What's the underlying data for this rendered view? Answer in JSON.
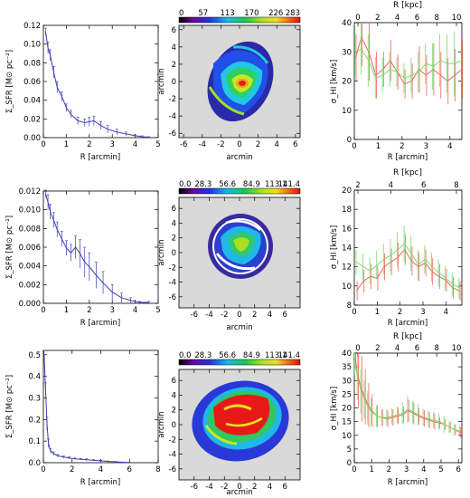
{
  "panels": {
    "left": [
      {
        "xlabel": "R  [arcmin]",
        "ylabel": "Σ_SFR [M⊙ pc⁻²]",
        "xlim": [
          0,
          5
        ],
        "ylim": [
          0,
          0.12
        ],
        "xticks": [
          0,
          1,
          2,
          3,
          4,
          5
        ],
        "yticks": [
          0,
          0.02,
          0.04,
          0.06,
          0.08,
          0.1,
          0.12
        ],
        "ytick_labels": [
          "0.00",
          "0.02",
          "0.04",
          "0.06",
          "0.08",
          "0.10",
          "0.12"
        ]
      },
      {
        "xlabel": "R  [arcmin]",
        "ylabel": "Σ_SFR [M⊙ pc⁻²]",
        "xlim": [
          0,
          5
        ],
        "ylim": [
          0,
          0.012
        ],
        "xticks": [
          0,
          1,
          2,
          3,
          4,
          5
        ],
        "yticks": [
          0,
          0.002,
          0.004,
          0.006,
          0.008,
          0.01,
          0.012
        ],
        "ytick_labels": [
          "0.000",
          "0.002",
          "0.004",
          "0.006",
          "0.008",
          "0.010",
          "0.012"
        ]
      },
      {
        "xlabel": "R  [arcmin]",
        "ylabel": "Σ_SFR [M⊙ pc⁻²]",
        "xlim": [
          0,
          8
        ],
        "ylim": [
          0,
          0.52
        ],
        "xticks": [
          0,
          2,
          4,
          6,
          8
        ],
        "yticks": [
          0,
          0.1,
          0.2,
          0.3,
          0.4,
          0.5
        ],
        "ytick_labels": [
          "0.0",
          "0.1",
          "0.2",
          "0.3",
          "0.4",
          "0.5"
        ]
      }
    ],
    "middle": [
      {
        "colorbar_ticks": [
          "0",
          "57",
          "113",
          "170",
          "226",
          "283"
        ],
        "xlabel": "arcmin",
        "ylabel": "arcmin",
        "xlim": [
          -6.5,
          6.5
        ],
        "ylim": [
          -6.5,
          6.5
        ],
        "xticks": [
          -6,
          -4,
          -2,
          0,
          2,
          4,
          6
        ],
        "yticks": [
          -6,
          -4,
          -2,
          0,
          2,
          4,
          6
        ]
      },
      {
        "colorbar_ticks": [
          "0.0",
          "28.3",
          "56.6",
          "84.9",
          "113.1",
          "141.4"
        ],
        "xlabel": "arcmin",
        "ylabel": "arcmin",
        "xlim": [
          -8,
          8
        ],
        "ylim": [
          -7.5,
          7.5
        ],
        "xticks": [
          -6,
          -4,
          -2,
          0,
          2,
          4,
          6
        ],
        "yticks": [
          -6,
          -4,
          -2,
          0,
          2,
          4,
          6
        ]
      },
      {
        "colorbar_ticks": [
          "0.0",
          "28.3",
          "56.6",
          "84.9",
          "113.1",
          "141.4"
        ],
        "xlabel": "arcmin",
        "ylabel": "arcmin",
        "xlim": [
          -8,
          8
        ],
        "ylim": [
          -7.5,
          7.5
        ],
        "xticks": [
          -6,
          -4,
          -2,
          0,
          2,
          4,
          6
        ],
        "yticks": [
          -6,
          -4,
          -2,
          0,
          2,
          4,
          6
        ]
      }
    ],
    "right": [
      {
        "top_label": "R  [kpc]",
        "xlabel": "R  [arcmin]",
        "ylabel": "σ_HI [km/s]",
        "xlim": [
          0,
          4.5
        ],
        "ylim": [
          0,
          40
        ],
        "xticks": [
          0,
          1,
          2,
          3,
          4
        ],
        "yticks": [
          0,
          10,
          20,
          30,
          40
        ],
        "top_ticks": [
          "0",
          "2",
          "4",
          "6",
          "8",
          "10"
        ]
      },
      {
        "top_label": "R  [kpc]",
        "xlabel": "R  [arcmin]",
        "ylabel": "σ_HI [km/s]",
        "xlim": [
          0,
          4.7
        ],
        "ylim": [
          8,
          20
        ],
        "xticks": [
          0,
          1,
          2,
          3,
          4
        ],
        "yticks": [
          8,
          10,
          12,
          14,
          16,
          18,
          20
        ],
        "top_ticks": [
          "2",
          "4",
          "6",
          "8"
        ]
      },
      {
        "top_label": "R  [kpc]",
        "xlabel": "R  [arcmin]",
        "ylabel": "σ_HI [km/s]",
        "xlim": [
          0,
          6.2
        ],
        "ylim": [
          0,
          40
        ],
        "xticks": [
          0,
          1,
          2,
          3,
          4,
          5,
          6
        ],
        "yticks": [
          0,
          5,
          10,
          15,
          20,
          25,
          30,
          35,
          40
        ],
        "top_ticks": [
          "0",
          "2",
          "4",
          "6",
          "8",
          "10"
        ]
      }
    ]
  },
  "colors": {
    "profile": "#3b3fb0",
    "green": "#7ddc6a",
    "red": "#e8665a",
    "map_bg": "#d9d9d9"
  },
  "chart_data": [
    {
      "type": "line",
      "x": [
        0.1,
        0.2,
        0.3,
        0.45,
        0.6,
        0.8,
        1.0,
        1.2,
        1.5,
        1.8,
        2.0,
        2.2,
        2.5,
        2.8,
        3.2,
        3.6,
        4.0,
        4.3,
        4.6
      ],
      "values": [
        0.113,
        0.096,
        0.088,
        0.07,
        0.054,
        0.044,
        0.032,
        0.025,
        0.018,
        0.016,
        0.017,
        0.018,
        0.013,
        0.009,
        0.006,
        0.004,
        0.002,
        0.001,
        0.0005
      ],
      "err": [
        0.004,
        0.006,
        0.006,
        0.006,
        0.006,
        0.005,
        0.004,
        0.004,
        0.004,
        0.004,
        0.005,
        0.005,
        0.004,
        0.004,
        0.003,
        0.002,
        0.001,
        0.001,
        0.0005
      ]
    },
    {
      "type": "line",
      "x": [
        0.1,
        0.2,
        0.3,
        0.45,
        0.6,
        0.8,
        1.0,
        1.2,
        1.4,
        1.6,
        1.8,
        2.0,
        2.3,
        2.6,
        3.0,
        3.4,
        3.8,
        4.2,
        4.6
      ],
      "values": [
        0.0117,
        0.0108,
        0.0098,
        0.0089,
        0.0079,
        0.0069,
        0.0059,
        0.0054,
        0.006,
        0.0053,
        0.0044,
        0.0039,
        0.003,
        0.0022,
        0.0012,
        0.0006,
        0.0003,
        0.0001,
        0.0001
      ],
      "err": [
        0.0004,
        0.0008,
        0.0008,
        0.0008,
        0.0008,
        0.0008,
        0.0008,
        0.0009,
        0.0012,
        0.0015,
        0.0016,
        0.0015,
        0.0014,
        0.0012,
        0.0008,
        0.0005,
        0.0003,
        0.0001,
        0.0001
      ]
    },
    {
      "type": "line",
      "x": [
        0.05,
        0.15,
        0.25,
        0.35,
        0.5,
        0.7,
        1.0,
        1.4,
        1.8,
        2.2,
        2.6,
        3.0,
        3.5,
        4.0,
        4.5,
        5.0,
        5.5,
        6.0
      ],
      "values": [
        0.5,
        0.34,
        0.18,
        0.09,
        0.055,
        0.042,
        0.032,
        0.026,
        0.022,
        0.018,
        0.016,
        0.014,
        0.011,
        0.009,
        0.006,
        0.004,
        0.002,
        0.001
      ],
      "err": [
        0.02,
        0.03,
        0.03,
        0.02,
        0.01,
        0.008,
        0.006,
        0.005,
        0.005,
        0.004,
        0.004,
        0.004,
        0.003,
        0.003,
        0.002,
        0.002,
        0.001,
        0.001
      ]
    },
    {
      "type": "image",
      "colorbar_range": [
        0,
        283
      ]
    },
    {
      "type": "image",
      "colorbar_range": [
        0,
        141.4
      ]
    },
    {
      "type": "image",
      "colorbar_range": [
        0,
        141.4
      ]
    },
    {
      "type": "line",
      "x": [
        0.05,
        0.3,
        0.6,
        0.9,
        1.2,
        1.5,
        1.8,
        2.1,
        2.4,
        2.7,
        3.0,
        3.3,
        3.6,
        3.9,
        4.2,
        4.5
      ],
      "series": [
        {
          "color": "red",
          "values": [
            28,
            35,
            30,
            22,
            24,
            27,
            23,
            19,
            20,
            24,
            22,
            24,
            22,
            20,
            22,
            24
          ],
          "err": [
            8,
            10,
            10,
            8,
            6,
            7,
            6,
            5,
            6,
            8,
            7,
            9,
            8,
            8,
            9,
            10
          ]
        },
        {
          "color": "green",
          "values": [
            30,
            31,
            27,
            21,
            22,
            24,
            23,
            21,
            22,
            23,
            26,
            25,
            27,
            26,
            26,
            27
          ],
          "err": [
            8,
            9,
            9,
            7,
            6,
            6,
            5,
            5,
            6,
            7,
            7,
            8,
            9,
            10,
            11,
            12
          ]
        }
      ]
    },
    {
      "type": "line",
      "x": [
        0.1,
        0.4,
        0.7,
        1.0,
        1.3,
        1.6,
        1.9,
        2.2,
        2.5,
        2.8,
        3.1,
        3.4,
        3.7,
        4.0,
        4.3,
        4.6
      ],
      "series": [
        {
          "color": "red",
          "values": [
            9.5,
            10.5,
            11.0,
            10.8,
            12.0,
            12.5,
            13.0,
            13.8,
            12.6,
            12.0,
            12.4,
            11.5,
            11.0,
            10.6,
            9.8,
            9.5
          ],
          "err": [
            1.0,
            1.2,
            1.3,
            1.3,
            1.4,
            1.4,
            1.5,
            1.6,
            1.5,
            1.5,
            1.4,
            1.4,
            1.3,
            1.2,
            1.1,
            1.0
          ]
        },
        {
          "color": "green",
          "values": [
            12.5,
            12.0,
            11.6,
            12.2,
            12.8,
            13.2,
            13.8,
            14.4,
            13.4,
            12.2,
            12.8,
            12.0,
            11.4,
            10.8,
            10.2,
            9.8
          ],
          "err": [
            1.3,
            1.4,
            1.4,
            1.5,
            1.6,
            1.7,
            1.8,
            1.9,
            1.8,
            1.6,
            1.5,
            1.5,
            1.4,
            1.3,
            1.2,
            1.1
          ]
        }
      ]
    },
    {
      "type": "line",
      "x": [
        0.05,
        0.2,
        0.4,
        0.6,
        0.8,
        1.0,
        1.3,
        1.6,
        1.9,
        2.2,
        2.5,
        2.8,
        3.1,
        3.4,
        3.7,
        4.0,
        4.3,
        4.6,
        4.9,
        5.2,
        5.5,
        5.8,
        6.1
      ],
      "series": [
        {
          "color": "red",
          "values": [
            38,
            32,
            27,
            24,
            21,
            19,
            17,
            16.5,
            16,
            16.5,
            17,
            17.5,
            19,
            18,
            17,
            16.2,
            15.5,
            15,
            14.5,
            14,
            13,
            12,
            11
          ],
          "err": [
            4,
            12,
            12,
            10,
            8,
            6,
            4,
            3,
            3,
            3,
            3,
            3,
            4,
            4,
            3,
            3,
            3,
            3,
            2,
            2,
            2,
            2,
            2
          ]
        },
        {
          "color": "green",
          "values": [
            36,
            31,
            26,
            23,
            20,
            18.5,
            17,
            16.5,
            16.5,
            17,
            17.5,
            18,
            19.5,
            18.5,
            17.5,
            16.5,
            16,
            15.5,
            15,
            14,
            13,
            12,
            11.5
          ],
          "err": [
            4,
            8,
            8,
            7,
            6,
            5,
            4,
            3,
            3,
            3,
            3,
            4,
            5,
            4,
            4,
            3,
            3,
            3,
            3,
            3,
            2,
            2,
            2
          ]
        }
      ]
    }
  ]
}
